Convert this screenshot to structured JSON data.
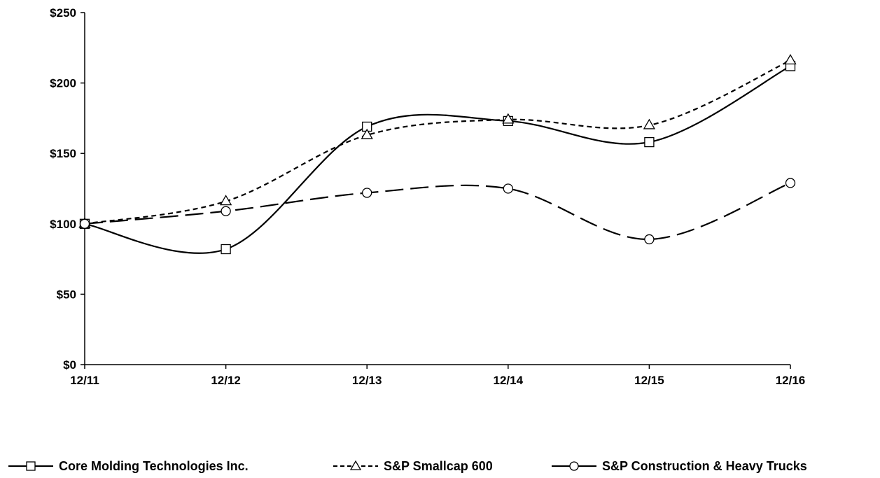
{
  "chart_data": {
    "type": "line",
    "x": [
      "12/11",
      "12/12",
      "12/13",
      "12/14",
      "12/15",
      "12/16"
    ],
    "y_ticks": [
      "$0",
      "$50",
      "$100",
      "$150",
      "$200",
      "$250"
    ],
    "ylim": [
      0,
      250
    ],
    "grid": false,
    "legend_position": "bottom",
    "series": [
      {
        "name": "Core Molding Technologies Inc.",
        "values": [
          100,
          82,
          169,
          173,
          158,
          212
        ],
        "marker": "square",
        "line_style": "solid",
        "color": "#000000"
      },
      {
        "name": "S&P Smallcap 600",
        "values": [
          100,
          116,
          163,
          174,
          170,
          216
        ],
        "marker": "triangle",
        "line_style": "dashed",
        "color": "#000000"
      },
      {
        "name": "S&P Construction & Heavy Trucks",
        "values": [
          100,
          109,
          122,
          125,
          89,
          129
        ],
        "marker": "circle",
        "line_style": "long-dash",
        "color": "#000000"
      }
    ]
  }
}
